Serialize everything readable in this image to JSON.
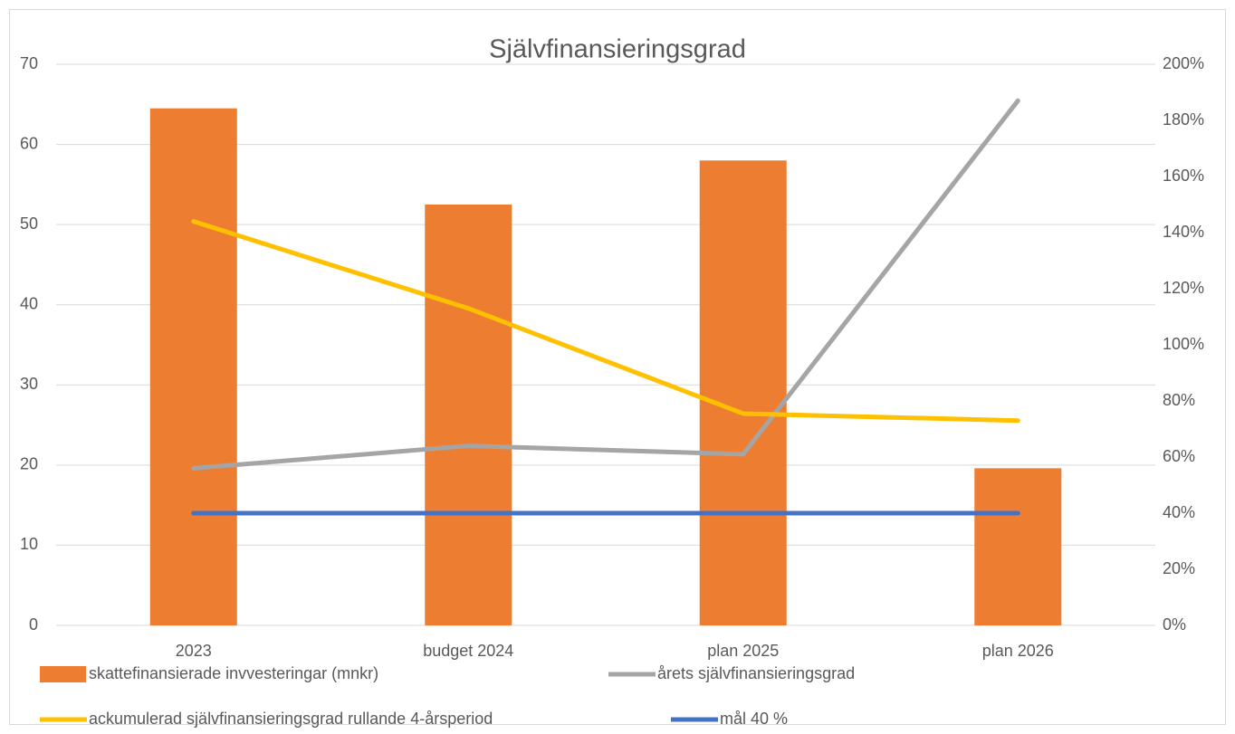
{
  "chart_data": {
    "type": "combo",
    "title": "Självfinansieringsgrad",
    "categories": [
      "2023",
      "budget 2024",
      "plan 2025",
      "plan 2026"
    ],
    "series": [
      {
        "name": "skattefinansierade invvesteringar (mnkr)",
        "type": "bar",
        "color": "#ed7d31",
        "values": [
          64.5,
          52.5,
          58,
          19.6
        ]
      },
      {
        "name": "årets självfinansieringsgrad",
        "type": "line",
        "axis": "y2",
        "color": "#a5a5a5",
        "values": [
          56,
          64,
          61,
          187
        ]
      },
      {
        "name": "ackumulerad självfinansieringsgrad rullande 4-årsperiod",
        "type": "line",
        "axis": "y2",
        "color": "#ffc000",
        "values": [
          144,
          113,
          75.5,
          73
        ]
      },
      {
        "name": "mål 40 %",
        "type": "line",
        "axis": "y2",
        "color": "#4472c4",
        "values": [
          40,
          40,
          40,
          40
        ]
      }
    ],
    "ylim": [
      0,
      70
    ],
    "yticks": [
      0,
      10,
      20,
      30,
      40,
      50,
      60,
      70
    ],
    "y2lim": [
      0,
      200
    ],
    "y2ticks": [
      {
        "value": 0,
        "label": "0%"
      },
      {
        "value": 20,
        "label": "20%"
      },
      {
        "value": 40,
        "label": "40%"
      },
      {
        "value": 60,
        "label": "60%"
      },
      {
        "value": 80,
        "label": "80%"
      },
      {
        "value": 100,
        "label": "100%"
      },
      {
        "value": 120,
        "label": "120%"
      },
      {
        "value": 140,
        "label": "140%"
      },
      {
        "value": 160,
        "label": "160%"
      },
      {
        "value": 180,
        "label": "180%"
      },
      {
        "value": 200,
        "label": "200%"
      }
    ],
    "grid": true
  }
}
